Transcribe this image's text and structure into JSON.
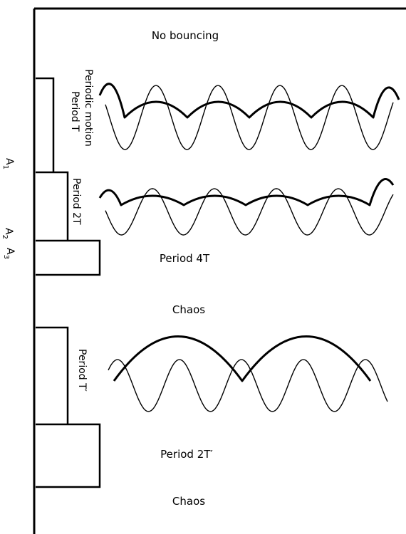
{
  "regions": {
    "no_bouncing": "No bouncing",
    "periodic_motion": "Periodic motion",
    "period_t": "Period T",
    "period_2t": "Period 2T",
    "period_4t": "Period 4T",
    "chaos_1": "Chaos",
    "period_t_prime": "Period T′",
    "period_2t_prime": "Period 2T′",
    "chaos_2": "Chaos"
  },
  "amplitude_labels": [
    {
      "letter": "A",
      "index": "1"
    },
    {
      "letter": "A",
      "index": "2"
    },
    {
      "letter": "A",
      "index": "3"
    }
  ]
}
